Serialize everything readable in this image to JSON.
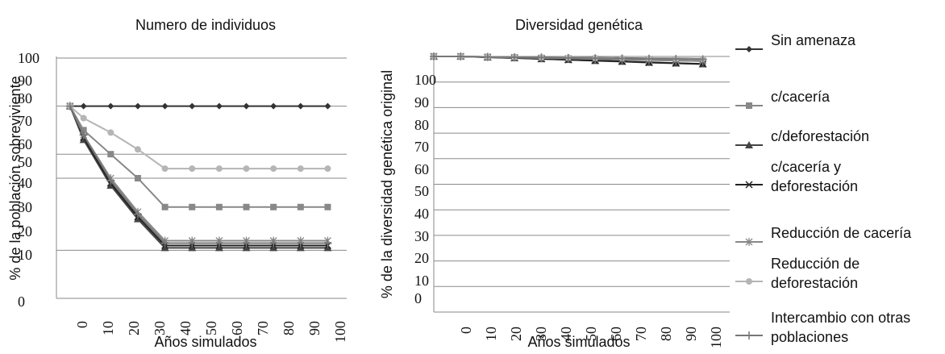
{
  "chart_data": [
    {
      "type": "line",
      "title": "Numero de individuos",
      "xlabel": "Años simulados",
      "ylabel": "% de la población sobreviviente",
      "x_ticks": [
        "0",
        "10",
        "20",
        "30",
        "40",
        "50",
        "60",
        "70",
        "80",
        "90",
        "100"
      ],
      "y_ticks": [
        "0",
        "10",
        "20",
        "30",
        "40",
        "50",
        "60",
        "70",
        "80",
        "90",
        "100"
      ],
      "x": [
        0,
        5,
        15,
        25,
        35,
        45,
        55,
        65,
        75,
        85,
        95
      ],
      "ylim": [
        0,
        100
      ],
      "series": [
        {
          "name": "Sin amenaza",
          "color": "#333333",
          "marker": "diamond",
          "values": [
            80,
            80,
            80,
            80,
            80,
            80,
            80,
            80,
            80,
            80,
            80
          ]
        },
        {
          "name": "c/cacería",
          "color": "#888888",
          "marker": "square",
          "values": [
            80,
            70,
            60,
            50,
            38,
            38,
            38,
            38,
            38,
            38,
            38
          ]
        },
        {
          "name": "c/deforestación",
          "color": "#444444",
          "marker": "triangle",
          "values": [
            80,
            66,
            47,
            33,
            21,
            21,
            21,
            21,
            21,
            21,
            21
          ]
        },
        {
          "name": "c/cacería y deforestación",
          "color": "#222222",
          "marker": "x",
          "values": [
            80,
            67,
            48,
            34,
            22,
            22,
            22,
            22,
            22,
            22,
            22
          ]
        },
        {
          "name": "Reducción de cacería",
          "color": "#888888",
          "marker": "star",
          "values": [
            80,
            68,
            50,
            36,
            24,
            24,
            24,
            24,
            24,
            24,
            24
          ]
        },
        {
          "name": "Reducción de deforestación",
          "color": "#b5b5b5",
          "marker": "circle",
          "values": [
            80,
            75,
            69,
            62,
            54,
            54,
            54,
            54,
            54,
            54,
            54
          ]
        },
        {
          "name": "Intercambio con otras poblaciones",
          "color": "#777777",
          "marker": "plus",
          "values": [
            80,
            68,
            49,
            35,
            23,
            23,
            23,
            23,
            23,
            23,
            23
          ]
        }
      ]
    },
    {
      "type": "line",
      "title": "Diversidad genética",
      "xlabel": "Años simulados",
      "ylabel": "% de la diversidad genética original",
      "x_ticks": [
        "0",
        "10",
        "20",
        "30",
        "40",
        "50",
        "60",
        "70",
        "80",
        "90",
        "100"
      ],
      "y_ticks": [
        "0",
        "10",
        "20",
        "30",
        "40",
        "50",
        "60",
        "70",
        "80",
        "90",
        "100"
      ],
      "x": [
        -5,
        5,
        15,
        25,
        35,
        45,
        55,
        65,
        75,
        85,
        95
      ],
      "ylim": [
        0,
        100
      ],
      "series": [
        {
          "name": "Sin amenaza",
          "color": "#333333",
          "marker": "diamond",
          "values": [
            100,
            100,
            99.8,
            99.7,
            99.6,
            99.5,
            99.5,
            99.4,
            99.3,
            99.2,
            99.1
          ]
        },
        {
          "name": "c/cacería",
          "color": "#888888",
          "marker": "square",
          "values": [
            100,
            100,
            99.8,
            99.6,
            99.4,
            99.2,
            99,
            98.8,
            98.6,
            98.4,
            98.2
          ]
        },
        {
          "name": "c/deforestación",
          "color": "#444444",
          "marker": "triangle",
          "values": [
            100,
            100,
            99.7,
            99.4,
            99,
            98.7,
            98.3,
            98,
            97.6,
            97.3,
            97
          ]
        },
        {
          "name": "c/cacería y deforestación",
          "color": "#222222",
          "marker": "x",
          "values": [
            100,
            100,
            99.7,
            99.4,
            99.1,
            98.7,
            98.4,
            98.1,
            97.7,
            97.4,
            97.1
          ]
        },
        {
          "name": "Reducción de cacería",
          "color": "#888888",
          "marker": "star",
          "values": [
            100,
            100,
            99.8,
            99.6,
            99.4,
            99.2,
            99,
            98.8,
            98.6,
            98.4,
            98.2
          ]
        },
        {
          "name": "Reducción de deforestación",
          "color": "#b5b5b5",
          "marker": "circle",
          "values": [
            100,
            100,
            99.8,
            99.7,
            99.6,
            99.5,
            99.4,
            99.3,
            99.2,
            99.1,
            99
          ]
        },
        {
          "name": "Intercambio con otras poblaciones",
          "color": "#777777",
          "marker": "plus",
          "values": [
            100,
            100,
            99.8,
            99.7,
            99.6,
            99.4,
            99.3,
            99.2,
            99.1,
            99,
            98.9
          ]
        }
      ]
    }
  ],
  "legend": {
    "items": [
      {
        "lines": [
          "Sin amenaza"
        ],
        "color": "#333333",
        "marker": "diamond"
      },
      {
        "lines": [
          "c/cacería"
        ],
        "color": "#888888",
        "marker": "square"
      },
      {
        "lines": [
          "c/deforestación"
        ],
        "color": "#444444",
        "marker": "triangle"
      },
      {
        "lines": [
          "c/cacería y",
          "deforestación"
        ],
        "color": "#222222",
        "marker": "x"
      },
      {
        "lines": [
          "Reducción de cacería"
        ],
        "color": "#888888",
        "marker": "star"
      },
      {
        "lines": [
          "Reducción de",
          "deforestación"
        ],
        "color": "#b5b5b5",
        "marker": "circle"
      },
      {
        "lines": [
          "Intercambio con otras",
          " poblaciones"
        ],
        "color": "#777777",
        "marker": "plus"
      }
    ]
  }
}
